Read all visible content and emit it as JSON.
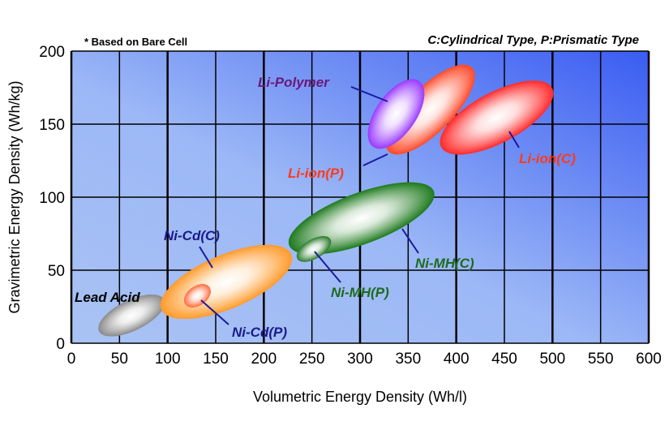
{
  "chart_data": {
    "type": "scatter",
    "note": "* Based on Bare Cell",
    "legend_text": "C:Cylindrical Type, P:Prismatic Type",
    "xlabel": "Volumetric  Energy  Density (Wh/l)",
    "ylabel": "Gravimetric  Energy  Density (Wh/kg)",
    "xlim": [
      0,
      600
    ],
    "ylim": [
      0,
      200
    ],
    "xticks": [
      "0",
      "50",
      "100",
      "150",
      "200",
      "250",
      "300",
      "350",
      "400",
      "450",
      "500",
      "550",
      "600"
    ],
    "yticks": [
      "0",
      "50",
      "100",
      "150",
      "200"
    ],
    "grid": true,
    "regions": [
      {
        "name": "Lead Acid",
        "x_range": [
          25,
          100
        ],
        "y_range": [
          7,
          31
        ],
        "color": "#8a8a8a",
        "label_color": "#000000"
      },
      {
        "name": "Ni-Cd(C)",
        "x_range": [
          86,
          236
        ],
        "y_range": [
          21,
          63
        ],
        "color": "#ff9a2a",
        "label_color": "#1a1a8c"
      },
      {
        "name": "Ni-Cd(P)",
        "x_range": [
          117,
          145
        ],
        "y_range": [
          26,
          39
        ],
        "color": "#ff6a3a",
        "label_color": "#1a1a8c"
      },
      {
        "name": "Ni-MH(C)",
        "x_range": [
          218,
          385
        ],
        "y_range": [
          65,
          106
        ],
        "color": "#1e7a1e",
        "label_color": "#1e6a1e"
      },
      {
        "name": "Ni-MH(P)",
        "x_range": [
          233,
          271
        ],
        "y_range": [
          57,
          72
        ],
        "color": "#2a7a2a",
        "label_color": "#1e6a1e"
      },
      {
        "name": "Li-ion(P)",
        "x_range": [
          325,
          421
        ],
        "y_range": [
          128,
          192
        ],
        "color": "#ff4a2a",
        "label_color": "#ff3a1a"
      },
      {
        "name": "Li-ion(C)",
        "x_range": [
          378,
          506
        ],
        "y_range": [
          132,
          177
        ],
        "color": "#ff2a2a",
        "label_color": "#ff3a1a"
      },
      {
        "name": "Li-Polymer",
        "x_range": [
          311,
          364
        ],
        "y_range": [
          132,
          182
        ],
        "color": "#9a3aff",
        "label_color": "#6a1a7a"
      }
    ]
  }
}
